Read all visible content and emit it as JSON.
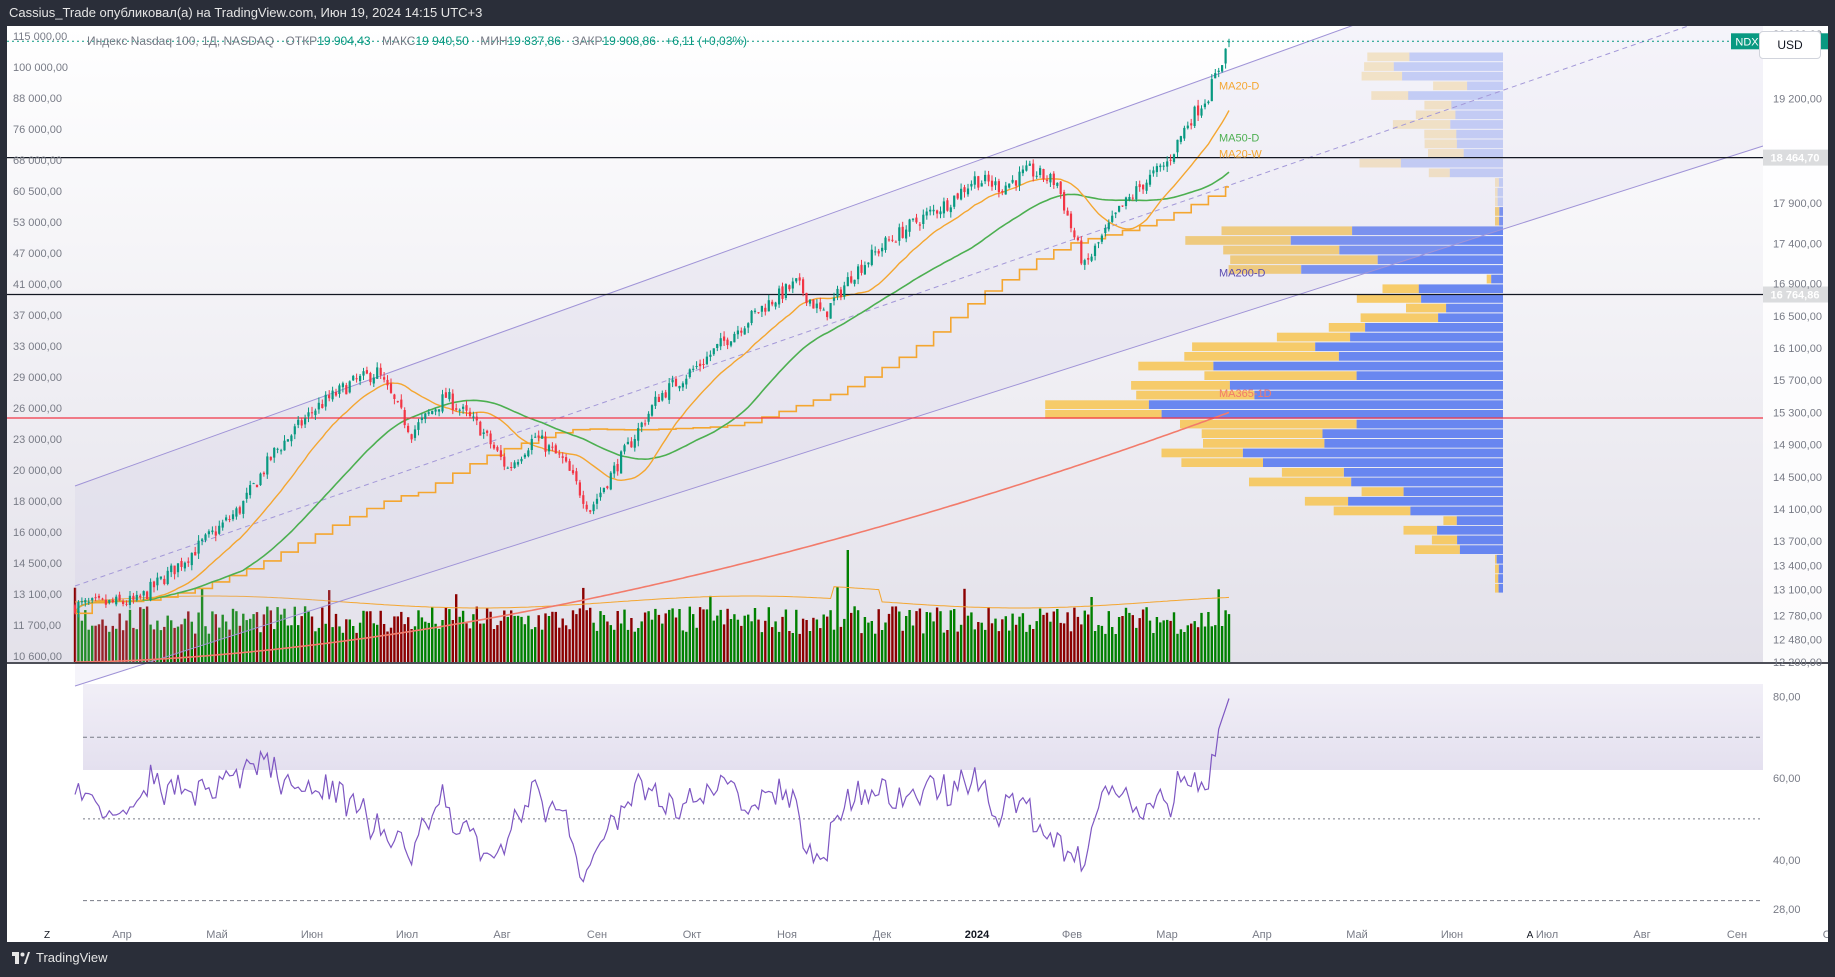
{
  "header": {
    "publisher_line": "Cassius_Trade опубликовал(а) на TradingView.com, Июн 19, 2024 14:15 UTC+3"
  },
  "legend": {
    "instrument": "Индекс Nasdaq 100, 1Д, NASDAQ",
    "open_label": "ОТКР",
    "open": "19 904,43",
    "high_label": "МАКС",
    "high": "19 940,50",
    "low_label": "МИН",
    "low": "19 837,86",
    "close_label": "ЗАКР",
    "close": "19 908,86",
    "change": "+6,11 (+0,03%)"
  },
  "currency_button": "USD",
  "footer": {
    "brand": "TradingView",
    "scale_left": "Z",
    "scale_right": "A"
  },
  "colors": {
    "up": "#089981",
    "down": "#f23645",
    "volume_up": "#008000",
    "volume_down": "#8b0000",
    "ma20d": "#f4a630",
    "ma50d": "#4caf50",
    "ma20w": "#f4a630",
    "ma200d": "#5b4baf",
    "ma365": "#f27b6b",
    "channel": "#9c8fd6",
    "profile_up": "#f7c451",
    "profile_down": "#5a7bf0",
    "rsi": "#7e57c2",
    "level_black": "#131722",
    "level_red": "#f23645",
    "price_tag": "#089981"
  },
  "chart_data": {
    "type": "candlestick",
    "symbol": "NDX",
    "timeframe": "1Д",
    "price_axis": {
      "left_ticks": [
        "115 000,00",
        "100 000,00",
        "88 000,00",
        "76 000,00",
        "68 000,00",
        "60 500,00",
        "53 000,00",
        "47 000,00",
        "41 000,00",
        "37 000,00",
        "33 000,00",
        "29 000,00",
        "26 000,00",
        "23 000,00",
        "20 000,00",
        "18 000,00",
        "16 000,00",
        "14 500,00",
        "13 100,00",
        "11 700,00",
        "10 600,00"
      ],
      "right_ticks": [
        "20 000,00",
        "19 200,00",
        "17 900,00",
        "17 400,00",
        "16 900,00",
        "16 500,00",
        "16 100,00",
        "15 700,00",
        "15 300,00",
        "14 900,00",
        "14 500,00",
        "14 100,00",
        "13 700,00",
        "13 400,00",
        "13 100,00",
        "12 780,00",
        "12 480,00",
        "12 200,00"
      ],
      "ylim": [
        12200,
        20000
      ]
    },
    "time_axis": [
      "Апр",
      "Май",
      "Июн",
      "Июл",
      "Авг",
      "Сен",
      "Окт",
      "Ноя",
      "Дек",
      "2024",
      "Фев",
      "Мар",
      "Апр",
      "Май",
      "Июн",
      "Июл",
      "Авг",
      "Сен",
      "Окт"
    ],
    "last_price": {
      "symbol": "NDX",
      "value": "19 908,86"
    },
    "levels": [
      {
        "value": "18 464,70",
        "price": 18464.7,
        "color": "black"
      },
      {
        "value": "16 764,86",
        "price": 16764.86,
        "color": "black"
      },
      {
        "price": 15230,
        "color": "red"
      }
    ],
    "indicator_labels": [
      "MA20-D",
      "MA50-D",
      "MA20-W",
      "MA200-D",
      "MA365-1D"
    ],
    "rsi": {
      "ticks": [
        "80,00",
        "60,00",
        "40,00",
        "28,00"
      ],
      "upper_band": 70,
      "lower_band": 30,
      "mid": 50,
      "last": 79.5,
      "range": [
        25,
        85
      ]
    },
    "key_closes": [
      {
        "date": "Март 2023",
        "close": 12900
      },
      {
        "date": "Июл 2023",
        "close": 15800
      },
      {
        "date": "Окт 2023",
        "close": 14100
      },
      {
        "date": "Дек 2023",
        "close": 16900
      },
      {
        "date": "Мар 2024",
        "close": 18300
      },
      {
        "date": "Апр 2024",
        "close": 17100
      },
      {
        "date": "Июн 19, 2024",
        "close": 19908.86
      }
    ]
  }
}
